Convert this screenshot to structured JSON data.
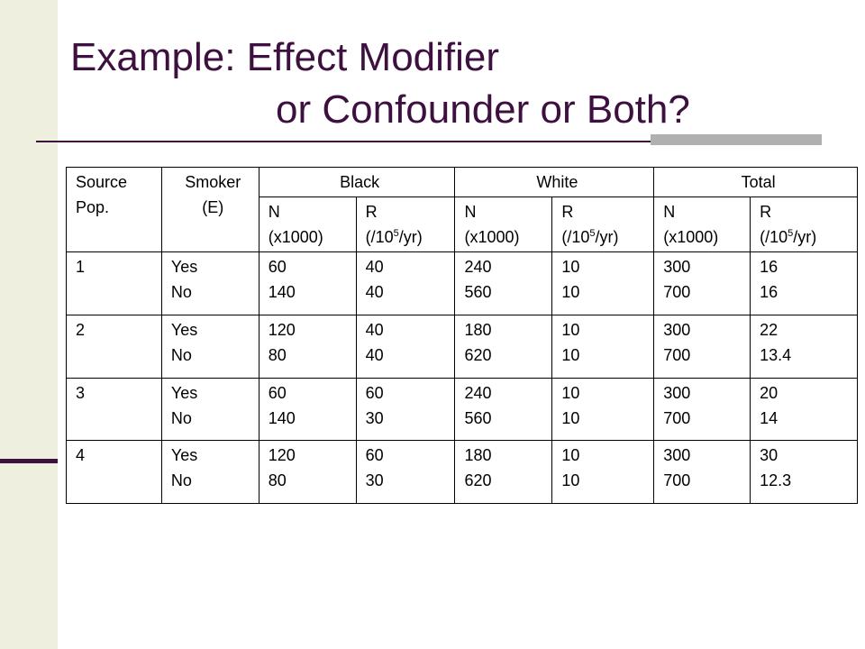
{
  "title": {
    "line1": "Example:  Effect Modifier",
    "line2": "or Confounder or Both?"
  },
  "table": {
    "headers": {
      "source": [
        "Source",
        "Pop."
      ],
      "smoker": [
        "Smoker",
        "(E)"
      ],
      "groups": [
        "Black",
        "White",
        "Total"
      ],
      "n_label": [
        "N",
        "(x1000)"
      ],
      "r_label": {
        "pre": "R",
        "unit_pre": "(/10",
        "exp": "5",
        "unit_post": "/yr)"
      }
    },
    "rows": [
      {
        "pop": "1",
        "smoker": [
          "Yes",
          "No"
        ],
        "cells": [
          [
            "60",
            "140"
          ],
          [
            "40",
            "40"
          ],
          [
            "240",
            "560"
          ],
          [
            "10",
            "10"
          ],
          [
            "300",
            "700"
          ],
          [
            "16",
            "16"
          ]
        ]
      },
      {
        "pop": "2",
        "smoker": [
          "Yes",
          "No"
        ],
        "cells": [
          [
            "120",
            "80"
          ],
          [
            "40",
            "40"
          ],
          [
            "180",
            "620"
          ],
          [
            "10",
            "10"
          ],
          [
            "300",
            "700"
          ],
          [
            "22",
            "13.4"
          ]
        ]
      },
      {
        "pop": "3",
        "smoker": [
          "Yes",
          "No"
        ],
        "cells": [
          [
            "60",
            "140"
          ],
          [
            "60",
            "30"
          ],
          [
            "240",
            "560"
          ],
          [
            "10",
            "10"
          ],
          [
            "300",
            "700"
          ],
          [
            "20",
            "14"
          ]
        ]
      },
      {
        "pop": "4",
        "smoker": [
          "Yes",
          "No"
        ],
        "cells": [
          [
            "120",
            "80"
          ],
          [
            "60",
            "30"
          ],
          [
            "180",
            "620"
          ],
          [
            "10",
            "10"
          ],
          [
            "300",
            "700"
          ],
          [
            "30",
            "12.3"
          ]
        ]
      }
    ]
  }
}
